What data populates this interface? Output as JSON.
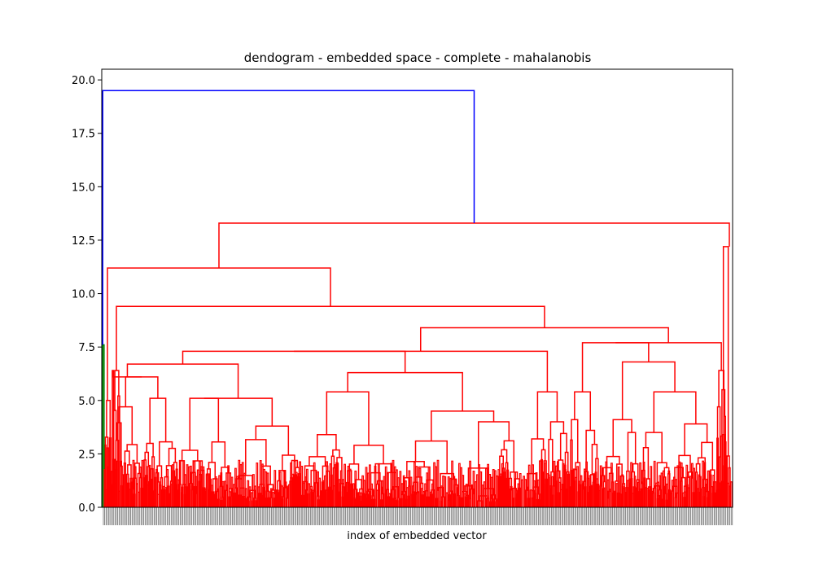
{
  "chart_data": {
    "type": "dendrogram",
    "title": "dendogram - embedded space - complete - mahalanobis",
    "xlabel": "index of embedded vector",
    "ylabel": "",
    "ylim": [
      0,
      20.5
    ],
    "yticks": [
      "0.0",
      "2.5",
      "5.0",
      "7.5",
      "10.0",
      "12.5",
      "15.0",
      "17.5",
      "20.0"
    ],
    "x_tick_labels_note": "",
    "grid": false,
    "colors": {
      "root": "#0000ff",
      "cluster_a": "#008000",
      "cluster_b": "#ff0000"
    },
    "merges": [
      {
        "cluster": "root",
        "height": 19.5,
        "color": "#0000ff"
      },
      {
        "cluster": "main",
        "height": 13.3,
        "color": "#ff0000"
      },
      {
        "cluster": "right-edge",
        "height": 12.2,
        "color": "#ff0000"
      },
      {
        "cluster": "left-main",
        "height": 11.2,
        "color": "#ff0000"
      },
      {
        "cluster": "left-inner",
        "height": 9.4,
        "color": "#ff0000"
      },
      {
        "cluster": "right-group",
        "height": 8.4,
        "color": "#ff0000"
      },
      {
        "cluster": "right-sub",
        "height": 7.7,
        "color": "#ff0000"
      },
      {
        "cluster": "green-leaf",
        "height": 7.6,
        "color": "#008000"
      },
      {
        "cluster": "middle-group",
        "height": 7.3,
        "color": "#ff0000"
      },
      {
        "cluster": "mid-left",
        "height": 6.7,
        "color": "#ff0000"
      },
      {
        "cluster": "mid-right",
        "height": 6.3,
        "color": "#ff0000"
      }
    ]
  }
}
